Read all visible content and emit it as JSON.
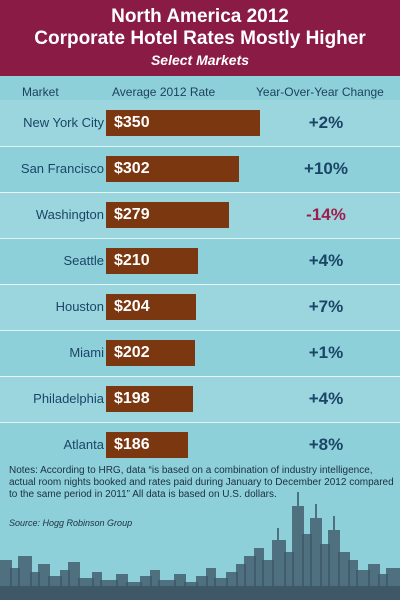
{
  "header": {
    "title_line1": "North America 2012",
    "title_line2": "Corporate Hotel Rates Mostly Higher",
    "subtitle": "Select Markets"
  },
  "columns": {
    "market": "Market",
    "rate": "Average 2012 Rate",
    "change": "Year-Over-Year Change"
  },
  "chart_data": {
    "type": "bar",
    "orientation": "horizontal",
    "categories": [
      "New York City",
      "San Francisco",
      "Washington",
      "Seattle",
      "Houston",
      "Miami",
      "Philadelphia",
      "Atlanta"
    ],
    "values": [
      350,
      302,
      279,
      210,
      204,
      202,
      198,
      186
    ],
    "value_labels": [
      "$350",
      "$302",
      "$279",
      "$210",
      "$204",
      "$202",
      "$198",
      "$186"
    ],
    "changes": [
      "+2%",
      "+10%",
      "-14%",
      "+4%",
      "+7%",
      "+1%",
      "+4%",
      "+8%"
    ],
    "xlim": [
      0,
      350
    ],
    "grid": false,
    "colors": {
      "bar": "#7b3710",
      "positive_change": "#1b4566",
      "negative_change": "#9e1d4c"
    }
  },
  "notes": {
    "text": "Notes: According to HRG, data “is based on a combination of industry intelligence, actual room nights booked and rates paid during January to December 2012 compared to the same period in 2011” All data is based on U.S. dollars.",
    "source": "Source: Hogg Robinson Group"
  },
  "colors": {
    "header_bg": "#8a1b45",
    "page_bg": "#8dd0da",
    "skyline": "#3e5868"
  }
}
